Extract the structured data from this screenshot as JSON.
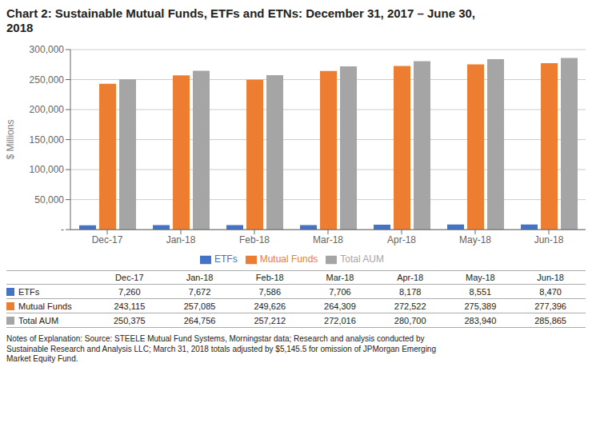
{
  "chart_data": {
    "type": "bar",
    "title": "Chart 2:  Sustainable Mutual Funds, ETFs and ETNs:  December 31, 2017 – June 30,\n2018",
    "categories": [
      "Dec-17",
      "Jan-18",
      "Feb-18",
      "Mar-18",
      "Apr-18",
      "May-18",
      "Jun-18"
    ],
    "series": [
      {
        "name": "ETFs",
        "color": "#4472C4",
        "values": [
          7260,
          7672,
          7586,
          7706,
          8178,
          8551,
          8470
        ],
        "value_labels": [
          "7,260",
          "7,672",
          "7,586",
          "7,706",
          "8,178",
          "8,551",
          "8,470"
        ]
      },
      {
        "name": "Mutual Funds",
        "color": "#ED7D31",
        "values": [
          243115,
          257085,
          249626,
          264309,
          272522,
          275389,
          277396
        ],
        "value_labels": [
          "243,115",
          "257,085",
          "249,626",
          "264,309",
          "272,522",
          "275,389",
          "277,396"
        ]
      },
      {
        "name": "Total AUM",
        "color": "#A5A5A5",
        "values": [
          250375,
          264756,
          257212,
          272016,
          280700,
          283940,
          285865
        ],
        "value_labels": [
          "250,375",
          "264,756",
          "257,212",
          "272,016",
          "280,700",
          "283,940",
          "285,865"
        ]
      }
    ],
    "ylabel": "$ Millions",
    "ylim": [
      0,
      300000
    ],
    "yticks": [
      {
        "value": 0,
        "label": "-"
      },
      {
        "value": 50000,
        "label": "50,000"
      },
      {
        "value": 100000,
        "label": "100,000"
      },
      {
        "value": 150000,
        "label": "150,000"
      },
      {
        "value": 200000,
        "label": "200,000"
      },
      {
        "value": 250000,
        "label": "250,000"
      },
      {
        "value": 300000,
        "label": "300,000"
      }
    ],
    "grid": true,
    "legend": "bottom",
    "annotations": [
      "Notes of Explanation: Source: STEELE Mutual Fund Systems, Morningstar data; Research and analysis conducted by\nSustainable Research and Analysis LLC; March 31, 2018 totals adjusted by $5,145.5 for omission of JPMorgan Emerging\nMarket Equity Fund."
    ]
  }
}
